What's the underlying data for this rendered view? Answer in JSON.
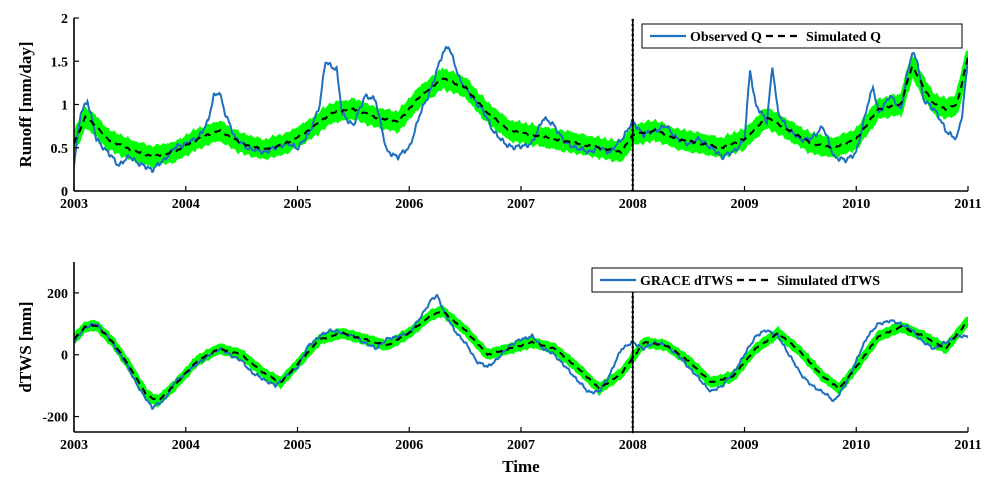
{
  "chart_data": [
    {
      "type": "line",
      "ylabel": "Runoff  [mm/day]",
      "xlabel": "",
      "xlim": [
        2003,
        2011
      ],
      "ylim": [
        0,
        2
      ],
      "xticks": [
        "2003",
        "2004",
        "2005",
        "2006",
        "2007",
        "2008",
        "2009",
        "2010",
        "2011"
      ],
      "yticks": [
        "0",
        "0.5",
        "1",
        "1.5",
        "2"
      ],
      "grid": false,
      "legend_position": "top-right",
      "divider_x": 2008,
      "ensemble_color": "#00ff00",
      "series": [
        {
          "name": "Observed Q",
          "color": "#1f6fbf",
          "style": "solid",
          "x": [
            2003.0,
            2003.06,
            2003.12,
            2003.2,
            2003.3,
            2003.4,
            2003.5,
            2003.6,
            2003.7,
            2003.8,
            2003.9,
            2004.0,
            2004.1,
            2004.2,
            2004.25,
            2004.3,
            2004.35,
            2004.45,
            2004.55,
            2004.7,
            2004.9,
            2005.0,
            2005.1,
            2005.2,
            2005.25,
            2005.3,
            2005.35,
            2005.4,
            2005.5,
            2005.6,
            2005.7,
            2005.8,
            2005.9,
            2006.0,
            2006.1,
            2006.2,
            2006.3,
            2006.35,
            2006.45,
            2006.55,
            2006.65,
            2006.75,
            2006.85,
            2006.95,
            2007.1,
            2007.2,
            2007.3,
            2007.4,
            2007.5,
            2007.6,
            2007.7,
            2007.8,
            2007.9,
            2008.0,
            2008.1,
            2008.2,
            2008.3,
            2008.4,
            2008.5,
            2008.6,
            2008.7,
            2008.8,
            2008.9,
            2009.0,
            2009.05,
            2009.1,
            2009.15,
            2009.2,
            2009.25,
            2009.3,
            2009.4,
            2009.5,
            2009.6,
            2009.7,
            2009.8,
            2009.9,
            2010.0,
            2010.05,
            2010.1,
            2010.15,
            2010.2,
            2010.3,
            2010.4,
            2010.45,
            2010.5,
            2010.55,
            2010.6,
            2010.7,
            2010.8,
            2010.9,
            2010.95,
            2011.0
          ],
          "y": [
            0.3,
            0.9,
            1.05,
            0.6,
            0.45,
            0.3,
            0.4,
            0.3,
            0.25,
            0.35,
            0.5,
            0.55,
            0.6,
            0.8,
            1.1,
            1.15,
            0.9,
            0.6,
            0.5,
            0.45,
            0.55,
            0.5,
            0.65,
            1.0,
            1.5,
            1.45,
            1.4,
            0.9,
            0.75,
            1.1,
            1.05,
            0.45,
            0.4,
            0.5,
            0.9,
            1.2,
            1.6,
            1.68,
            1.3,
            1.1,
            0.95,
            0.7,
            0.55,
            0.5,
            0.55,
            0.85,
            0.75,
            0.55,
            0.5,
            0.45,
            0.5,
            0.45,
            0.6,
            0.8,
            0.65,
            0.7,
            0.75,
            0.6,
            0.55,
            0.6,
            0.5,
            0.4,
            0.45,
            0.6,
            1.4,
            1.0,
            0.9,
            0.8,
            1.45,
            0.9,
            0.7,
            0.6,
            0.6,
            0.75,
            0.4,
            0.35,
            0.45,
            0.7,
            1.0,
            1.2,
            0.9,
            1.1,
            0.95,
            1.3,
            1.6,
            1.5,
            1.05,
            0.95,
            0.7,
            0.6,
            0.9,
            1.55
          ]
        },
        {
          "name": "Simulated Q",
          "color": "#000000",
          "style": "dashed",
          "x": [
            2003.0,
            2003.1,
            2003.2,
            2003.3,
            2003.5,
            2003.7,
            2003.9,
            2004.1,
            2004.3,
            2004.5,
            2004.7,
            2004.9,
            2005.1,
            2005.3,
            2005.5,
            2005.7,
            2005.9,
            2006.1,
            2006.3,
            2006.5,
            2006.7,
            2006.9,
            2007.1,
            2007.3,
            2007.5,
            2007.7,
            2007.9,
            2008.0,
            2008.2,
            2008.4,
            2008.6,
            2008.8,
            2009.0,
            2009.2,
            2009.4,
            2009.6,
            2009.8,
            2010.0,
            2010.2,
            2010.4,
            2010.5,
            2010.6,
            2010.7,
            2010.8,
            2010.9,
            2011.0
          ],
          "y": [
            0.55,
            0.85,
            0.75,
            0.6,
            0.48,
            0.4,
            0.45,
            0.6,
            0.7,
            0.55,
            0.48,
            0.55,
            0.7,
            0.9,
            0.95,
            0.85,
            0.8,
            1.1,
            1.3,
            1.2,
            0.9,
            0.7,
            0.65,
            0.6,
            0.55,
            0.5,
            0.45,
            0.65,
            0.7,
            0.6,
            0.55,
            0.5,
            0.6,
            0.85,
            0.7,
            0.55,
            0.5,
            0.6,
            0.95,
            1.0,
            1.45,
            1.2,
            1.0,
            0.95,
            1.0,
            1.55
          ]
        }
      ]
    },
    {
      "type": "line",
      "ylabel": "dTWS  [mm]",
      "xlabel": "Time",
      "xlim": [
        2003,
        2011
      ],
      "ylim": [
        -250,
        300
      ],
      "xticks": [
        "2003",
        "2004",
        "2005",
        "2006",
        "2007",
        "2008",
        "2009",
        "2010",
        "2011"
      ],
      "yticks": [
        "-200",
        "0",
        "200"
      ],
      "grid": false,
      "legend_position": "top-right",
      "divider_x": 2008,
      "ensemble_color": "#00ff00",
      "series": [
        {
          "name": "GRACE dTWS",
          "color": "#1f6fbf",
          "style": "solid",
          "x": [
            2003.0,
            2003.1,
            2003.2,
            2003.3,
            2003.45,
            2003.6,
            2003.7,
            2003.8,
            2003.9,
            2004.1,
            2004.3,
            2004.5,
            2004.6,
            2004.7,
            2004.8,
            2005.0,
            2005.1,
            2005.2,
            2005.3,
            2005.5,
            2005.6,
            2005.7,
            2005.8,
            2005.9,
            2006.0,
            2006.1,
            2006.2,
            2006.25,
            2006.3,
            2006.4,
            2006.5,
            2006.6,
            2006.7,
            2006.8,
            2006.9,
            2007.0,
            2007.1,
            2007.2,
            2007.3,
            2007.4,
            2007.5,
            2007.6,
            2007.7,
            2007.8,
            2007.9,
            2008.0,
            2008.05,
            2008.1,
            2008.2,
            2008.3,
            2008.4,
            2008.5,
            2008.6,
            2008.7,
            2008.8,
            2008.9,
            2009.0,
            2009.1,
            2009.2,
            2009.3,
            2009.4,
            2009.5,
            2009.6,
            2009.7,
            2009.8,
            2009.9,
            2010.0,
            2010.1,
            2010.2,
            2010.3,
            2010.4,
            2010.5,
            2010.6,
            2010.7,
            2010.8,
            2010.9,
            2011.0
          ],
          "y": [
            40,
            90,
            100,
            60,
            -20,
            -120,
            -170,
            -150,
            -90,
            -30,
            20,
            -20,
            -60,
            -80,
            -100,
            -40,
            30,
            60,
            80,
            60,
            40,
            20,
            50,
            60,
            70,
            120,
            180,
            190,
            150,
            80,
            40,
            -20,
            -40,
            -10,
            30,
            50,
            60,
            20,
            0,
            -40,
            -80,
            -120,
            -120,
            -60,
            20,
            40,
            30,
            20,
            40,
            30,
            0,
            -40,
            -80,
            -120,
            -100,
            -60,
            0,
            60,
            80,
            60,
            0,
            -60,
            -100,
            -120,
            -150,
            -100,
            -20,
            60,
            100,
            110,
            100,
            80,
            40,
            20,
            40,
            60,
            60
          ]
        },
        {
          "name": "Simulated dTWS",
          "color": "#000000",
          "style": "dashed",
          "x": [
            2003.0,
            2003.1,
            2003.2,
            2003.35,
            2003.5,
            2003.65,
            2003.75,
            2003.9,
            2004.1,
            2004.3,
            2004.5,
            2004.7,
            2004.85,
            2005.0,
            2005.2,
            2005.4,
            2005.6,
            2005.8,
            2006.0,
            2006.2,
            2006.3,
            2006.5,
            2006.7,
            2006.9,
            2007.1,
            2007.3,
            2007.5,
            2007.7,
            2007.9,
            2008.1,
            2008.3,
            2008.5,
            2008.7,
            2008.9,
            2009.1,
            2009.3,
            2009.5,
            2009.7,
            2009.85,
            2010.0,
            2010.2,
            2010.4,
            2010.6,
            2010.8,
            2011.0
          ],
          "y": [
            50,
            90,
            95,
            40,
            -40,
            -130,
            -150,
            -100,
            -20,
            20,
            0,
            -60,
            -90,
            -30,
            50,
            70,
            50,
            30,
            70,
            130,
            140,
            80,
            0,
            20,
            40,
            20,
            -40,
            -110,
            -60,
            40,
            30,
            -20,
            -90,
            -70,
            20,
            70,
            10,
            -70,
            -110,
            -40,
            60,
            90,
            60,
            20,
            110
          ]
        }
      ]
    }
  ]
}
